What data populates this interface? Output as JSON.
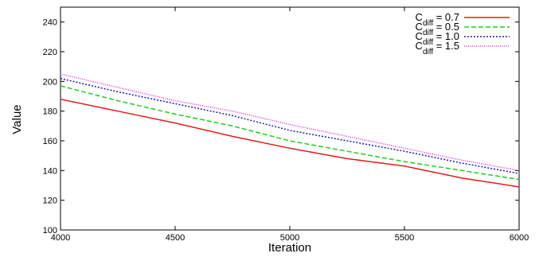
{
  "chart_data": {
    "type": "line",
    "title": "",
    "xlabel": "Iteration",
    "ylabel": "Value",
    "xlim": [
      4000,
      6000
    ],
    "ylim": [
      100,
      250
    ],
    "xticks": [
      "4000",
      "4500",
      "5000",
      "5500",
      "6000"
    ],
    "yticks": [
      "100",
      "120",
      "140",
      "160",
      "180",
      "200",
      "220",
      "240"
    ],
    "grid": false,
    "legend_position": "top-right",
    "x": [
      4000,
      4250,
      4500,
      4750,
      5000,
      5250,
      5500,
      5750,
      6000
    ],
    "series": [
      {
        "name_main": "C",
        "name_sub": "diff",
        "name_rest": " = 0.7",
        "color": "#e41a1c",
        "dash": "solid",
        "values": [
          188,
          180,
          172,
          163,
          155,
          148,
          143,
          135,
          129
        ]
      },
      {
        "name_main": "C",
        "name_sub": "diff",
        "name_rest": " = 0.5",
        "color": "#22cc22",
        "dash": "dashed",
        "values": [
          197,
          187,
          178,
          170,
          160,
          153,
          146,
          140,
          134
        ]
      },
      {
        "name_main": "C",
        "name_sub": "diff",
        "name_rest": " = 1.0",
        "color": "#1a1aaa",
        "dash": "dotted",
        "values": [
          202,
          193,
          185,
          177,
          167,
          160,
          153,
          145,
          138
        ]
      },
      {
        "name_main": "C",
        "name_sub": "diff",
        "name_rest": " = 1.5",
        "color": "#dd33dd",
        "dash": "fine-dotted",
        "values": [
          205,
          196,
          187,
          180,
          171,
          163,
          155,
          147,
          140
        ]
      }
    ]
  }
}
